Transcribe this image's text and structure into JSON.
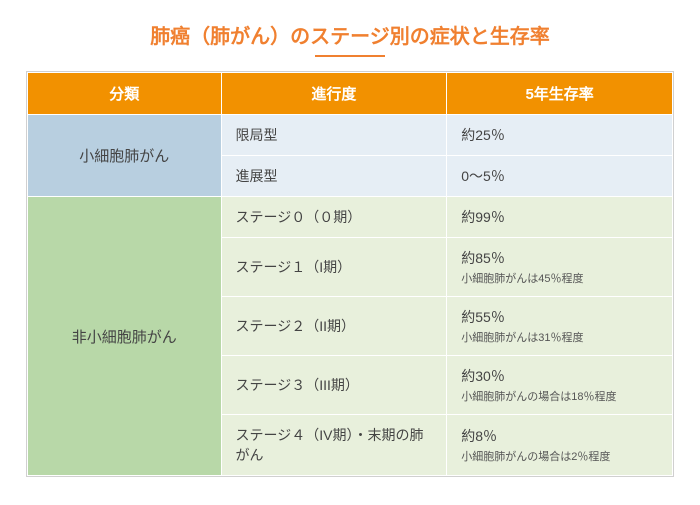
{
  "title": "肺癌（肺がん）のステージ別の症状と生存率",
  "colors": {
    "title": "#f08030",
    "underline": "#f08030",
    "header_bg": "#f29100",
    "header_text": "#ffffff",
    "cat1_bg": "#b8cfe0",
    "cat1_row_bg": "#e6eef5",
    "cat2_bg": "#b8d8a8",
    "cat2_row_bg": "#e8f0dc",
    "text": "#444444",
    "note_text": "#555555",
    "border": "#ffffff",
    "outer_border": "#d0d0d0"
  },
  "columns": [
    "分類",
    "進行度",
    "5年生存率"
  ],
  "col_widths": [
    "30%",
    "35%",
    "35%"
  ],
  "category1": {
    "label": "小細胞肺がん",
    "rows": [
      {
        "stage": "限局型",
        "rate": "約25％",
        "note": ""
      },
      {
        "stage": "進展型",
        "rate": "0～5％",
        "note": ""
      }
    ]
  },
  "category2": {
    "label": "非小細胞肺がん",
    "rows": [
      {
        "stage": "ステージ０（０期）",
        "rate": "約99％",
        "note": ""
      },
      {
        "stage": "ステージ１（I期）",
        "rate": "約85％",
        "note": "小細胞肺がんは45％程度"
      },
      {
        "stage": "ステージ２（II期）",
        "rate": "約55％",
        "note": "小細胞肺がんは31％程度"
      },
      {
        "stage": "ステージ３（III期）",
        "rate": "約30％",
        "note": "小細胞肺がんの場合は18％程度"
      },
      {
        "stage": "ステージ４（IV期）・末期の肺がん",
        "rate": "約8％",
        "note": "小細胞肺がんの場合は2％程度"
      }
    ]
  }
}
